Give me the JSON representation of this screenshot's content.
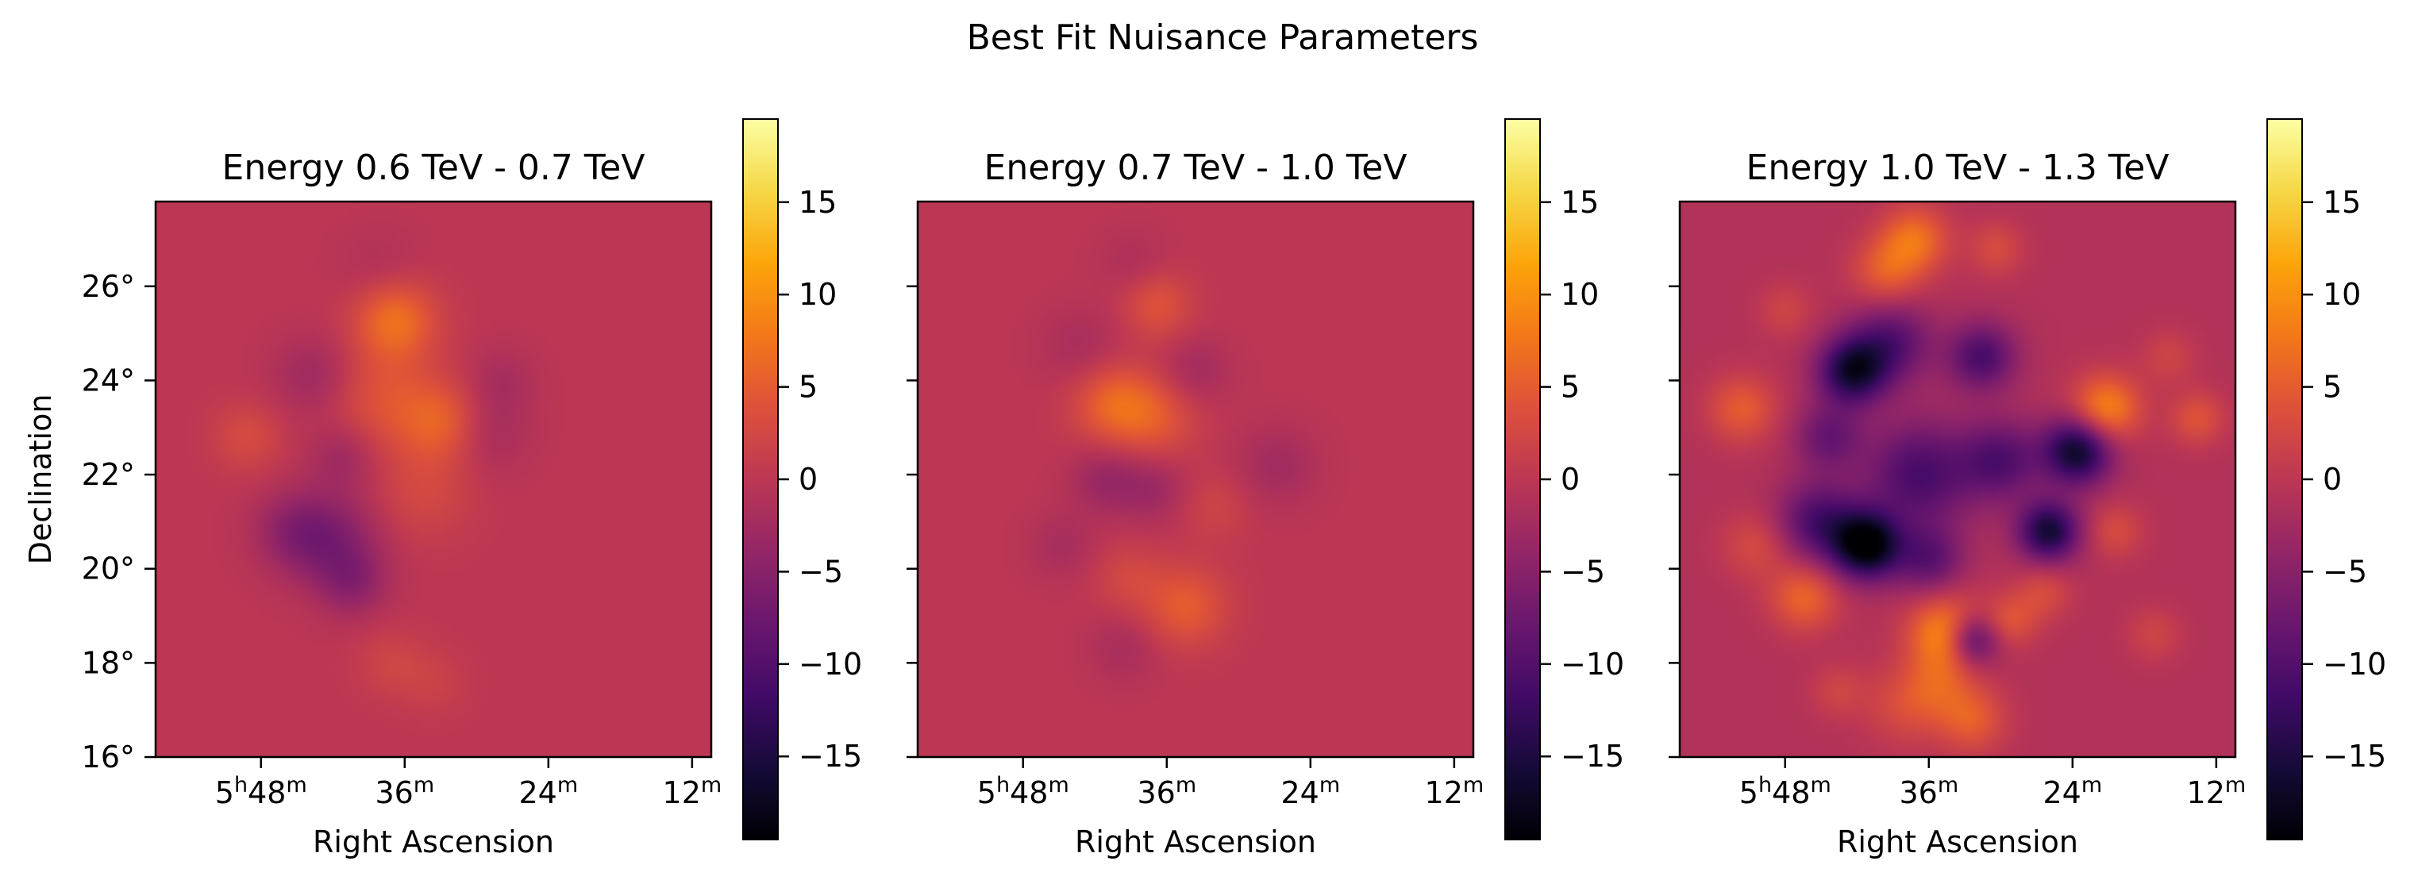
{
  "figure_title": "Best Fit Nuisance Parameters",
  "chart_data": [
    {
      "type": "heatmap",
      "title": "Energy 0.6 TeV - 0.7 TeV",
      "xlabel": "Right Ascension",
      "ylabel": "Declination",
      "x_ticks": [
        {
          "label": "5h48m",
          "value_deg": 87
        },
        {
          "label": "36m",
          "value_deg": 84
        },
        {
          "label": "24m",
          "value_deg": 81
        },
        {
          "label": "12m",
          "value_deg": 78
        }
      ],
      "y_ticks": [
        "16°",
        "18°",
        "20°",
        "22°",
        "24°",
        "26°"
      ],
      "ylim_deg": [
        16,
        27.8
      ],
      "xlim_deg": [
        89.2,
        77.6
      ],
      "colorbar": {
        "ticks": [
          15,
          10,
          5,
          0,
          -5,
          -10,
          -15
        ],
        "tick_labels": [
          "15",
          "10",
          "5",
          "0",
          "−5",
          "−10",
          "−15"
        ],
        "range": [
          -19.5,
          19.5
        ],
        "colormap": "inferno"
      },
      "background_value": 0,
      "features": [
        {
          "ra": 84.2,
          "dec": 25.3,
          "value": 7,
          "sigma": 0.6
        },
        {
          "ra": 83.2,
          "dec": 23.1,
          "value": 5,
          "sigma": 0.6
        },
        {
          "ra": 84.4,
          "dec": 23.6,
          "value": 4,
          "sigma": 0.8
        },
        {
          "ra": 83.6,
          "dec": 21.6,
          "value": 2.5,
          "sigma": 0.7
        },
        {
          "ra": 87.3,
          "dec": 22.8,
          "value": 3,
          "sigma": 0.5
        },
        {
          "ra": 84.3,
          "dec": 18.0,
          "value": 2,
          "sigma": 0.5
        },
        {
          "ra": 83.4,
          "dec": 17.6,
          "value": 1.5,
          "sigma": 0.5
        },
        {
          "ra": 85.5,
          "dec": 20.6,
          "value": -5,
          "sigma": 0.7
        },
        {
          "ra": 86.3,
          "dec": 20.8,
          "value": -4,
          "sigma": 0.6
        },
        {
          "ra": 85.1,
          "dec": 19.7,
          "value": -4,
          "sigma": 0.5
        },
        {
          "ra": 85.9,
          "dec": 24.1,
          "value": -3,
          "sigma": 0.6
        },
        {
          "ra": 85.3,
          "dec": 22.4,
          "value": -3,
          "sigma": 0.5
        },
        {
          "ra": 82.3,
          "dec": 22.9,
          "value": -2.5,
          "sigma": 0.6
        },
        {
          "ra": 82.0,
          "dec": 24.0,
          "value": -2,
          "sigma": 0.5
        },
        {
          "ra": 84.5,
          "dec": 26.3,
          "value": -1.5,
          "sigma": 0.6
        }
      ]
    },
    {
      "type": "heatmap",
      "title": "Energy 0.7 TeV - 1.0 TeV",
      "xlabel": "Right Ascension",
      "ylabel": "",
      "x_ticks": [
        {
          "label": "5h48m",
          "value_deg": 87
        },
        {
          "label": "36m",
          "value_deg": 84
        },
        {
          "label": "24m",
          "value_deg": 81
        },
        {
          "label": "12m",
          "value_deg": 78
        }
      ],
      "y_ticks": [],
      "ylim_deg": [
        16,
        27.8
      ],
      "xlim_deg": [
        89.2,
        77.6
      ],
      "colorbar": {
        "ticks": [
          15,
          10,
          5,
          0,
          -5,
          -10,
          -15
        ],
        "tick_labels": [
          "15",
          "10",
          "5",
          "0",
          "−5",
          "−10",
          "−15"
        ],
        "range": [
          -19.5,
          19.5
        ],
        "colormap": "inferno"
      },
      "background_value": 0,
      "features": [
        {
          "ra": 85.1,
          "dec": 23.5,
          "value": 6,
          "sigma": 0.6
        },
        {
          "ra": 84.2,
          "dec": 23.2,
          "value": 4,
          "sigma": 0.6
        },
        {
          "ra": 84.2,
          "dec": 25.6,
          "value": 4,
          "sigma": 0.5
        },
        {
          "ra": 83.6,
          "dec": 19.2,
          "value": 5,
          "sigma": 0.6
        },
        {
          "ra": 84.8,
          "dec": 19.8,
          "value": 2.5,
          "sigma": 0.5
        },
        {
          "ra": 83.0,
          "dec": 21.3,
          "value": 2,
          "sigma": 0.5
        },
        {
          "ra": 85.3,
          "dec": 21.9,
          "value": -3.5,
          "sigma": 0.5
        },
        {
          "ra": 84.3,
          "dec": 21.7,
          "value": -3,
          "sigma": 0.5
        },
        {
          "ra": 83.4,
          "dec": 24.2,
          "value": -2.5,
          "sigma": 0.5
        },
        {
          "ra": 81.7,
          "dec": 22.2,
          "value": -2.5,
          "sigma": 0.6
        },
        {
          "ra": 85.8,
          "dec": 24.7,
          "value": -2,
          "sigma": 0.6
        },
        {
          "ra": 84.7,
          "dec": 26.5,
          "value": -1.5,
          "sigma": 0.5
        },
        {
          "ra": 84.9,
          "dec": 18.3,
          "value": -2,
          "sigma": 0.5
        },
        {
          "ra": 86.2,
          "dec": 20.5,
          "value": -2,
          "sigma": 0.5
        }
      ]
    },
    {
      "type": "heatmap",
      "title": "Energy 1.0 TeV - 1.3 TeV",
      "xlabel": "Right Ascension",
      "ylabel": "",
      "x_ticks": [
        {
          "label": "5h48m",
          "value_deg": 87
        },
        {
          "label": "36m",
          "value_deg": 84
        },
        {
          "label": "24m",
          "value_deg": 81
        },
        {
          "label": "12m",
          "value_deg": 78
        }
      ],
      "y_ticks": [],
      "ylim_deg": [
        16,
        27.8
      ],
      "xlim_deg": [
        89.2,
        77.6
      ],
      "colorbar": {
        "ticks": [
          15,
          10,
          5,
          0,
          -5,
          -10,
          -15
        ],
        "tick_labels": [
          "15",
          "10",
          "5",
          "0",
          "−5",
          "−10",
          "−15"
        ],
        "range": [
          -19.5,
          19.5
        ],
        "colormap": "inferno"
      },
      "background_value": -1,
      "features": [
        {
          "ra": 85.3,
          "dec": 20.5,
          "value": -19,
          "sigma": 0.5
        },
        {
          "ra": 85.6,
          "dec": 24.2,
          "value": -15,
          "sigma": 0.5
        },
        {
          "ra": 80.9,
          "dec": 22.5,
          "value": -16,
          "sigma": 0.5
        },
        {
          "ra": 81.5,
          "dec": 20.8,
          "value": -15,
          "sigma": 0.45
        },
        {
          "ra": 83.1,
          "dec": 18.5,
          "value": -13,
          "sigma": 0.4
        },
        {
          "ra": 84.2,
          "dec": 22.0,
          "value": -10,
          "sigma": 0.8
        },
        {
          "ra": 86.3,
          "dec": 21.0,
          "value": -10,
          "sigma": 0.6
        },
        {
          "ra": 82.9,
          "dec": 24.5,
          "value": -10,
          "sigma": 0.5
        },
        {
          "ra": 84.8,
          "dec": 24.8,
          "value": -9,
          "sigma": 0.6
        },
        {
          "ra": 82.5,
          "dec": 22.3,
          "value": -9,
          "sigma": 0.6
        },
        {
          "ra": 86.1,
          "dec": 22.8,
          "value": -7,
          "sigma": 0.5
        },
        {
          "ra": 84.0,
          "dec": 20.2,
          "value": -8,
          "sigma": 0.5
        },
        {
          "ra": 83.6,
          "dec": 18.6,
          "value": 12,
          "sigma": 0.55
        },
        {
          "ra": 80.3,
          "dec": 23.4,
          "value": 10,
          "sigma": 0.5
        },
        {
          "ra": 84.3,
          "dec": 27.0,
          "value": 8,
          "sigma": 0.5
        },
        {
          "ra": 84.9,
          "dec": 26.3,
          "value": 6,
          "sigma": 0.5
        },
        {
          "ra": 86.6,
          "dec": 19.4,
          "value": 7,
          "sigma": 0.5
        },
        {
          "ra": 87.9,
          "dec": 23.4,
          "value": 6,
          "sigma": 0.5
        },
        {
          "ra": 78.4,
          "dec": 23.2,
          "value": 5,
          "sigma": 0.4
        },
        {
          "ra": 82.3,
          "dec": 18.9,
          "value": 5,
          "sigma": 0.4
        },
        {
          "ra": 83.1,
          "dec": 16.8,
          "value": 6,
          "sigma": 0.5
        },
        {
          "ra": 84.5,
          "dec": 17.1,
          "value": 4,
          "sigma": 0.6
        },
        {
          "ra": 83.8,
          "dec": 17.5,
          "value": 4,
          "sigma": 0.5
        },
        {
          "ra": 87.6,
          "dec": 20.5,
          "value": 4,
          "sigma": 0.5
        },
        {
          "ra": 81.6,
          "dec": 19.5,
          "value": 4,
          "sigma": 0.4
        },
        {
          "ra": 80.1,
          "dec": 20.8,
          "value": 4,
          "sigma": 0.4
        },
        {
          "ra": 79.3,
          "dec": 18.6,
          "value": 3,
          "sigma": 0.4
        },
        {
          "ra": 82.6,
          "dec": 26.8,
          "value": 4,
          "sigma": 0.4
        },
        {
          "ra": 87.0,
          "dec": 25.5,
          "value": 3,
          "sigma": 0.4
        },
        {
          "ra": 79.0,
          "dec": 24.5,
          "value": 3,
          "sigma": 0.4
        },
        {
          "ra": 85.9,
          "dec": 17.4,
          "value": 3,
          "sigma": 0.4
        }
      ]
    }
  ]
}
